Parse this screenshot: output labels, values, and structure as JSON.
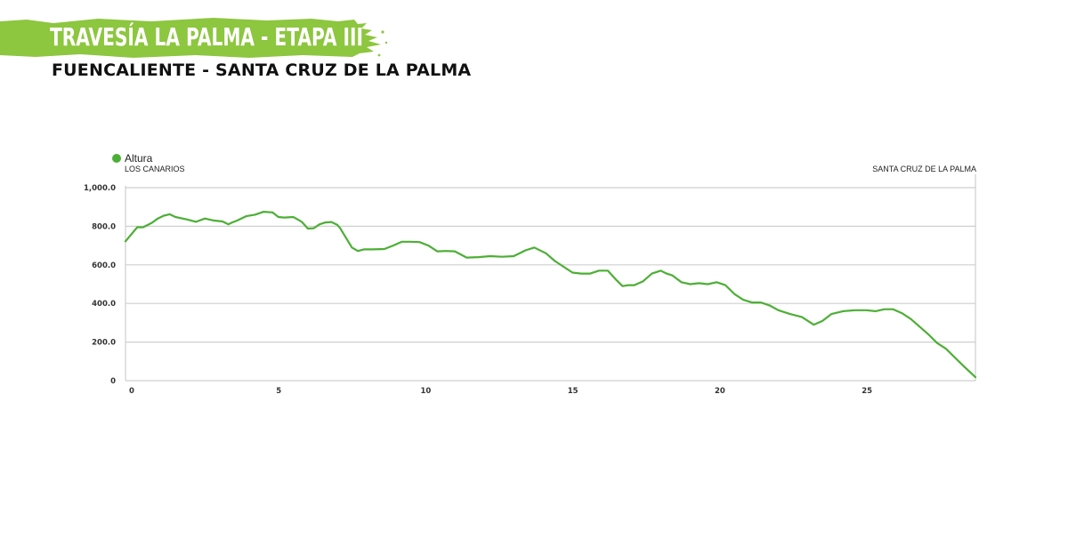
{
  "header": {
    "title": "TRAVESÍA LA PALMA - ETAPA III",
    "subtitle": "FUENCALIENTE - SANTA CRUZ DE LA PALMA"
  },
  "colors": {
    "accent": "#8dc63f",
    "line": "#4caf35",
    "grid": "#cfcfcf"
  },
  "chart_data": {
    "type": "line",
    "legend": "top-left",
    "grid": true,
    "xlim": [
      0,
      28.9
    ],
    "ylim": [
      0,
      1000
    ],
    "x_ticks": [
      "0",
      "5",
      "10",
      "15",
      "20",
      "25"
    ],
    "y_ticks": [
      "0",
      "200.0",
      "400.0",
      "600.0",
      "800.0",
      "1,000.0"
    ],
    "annotations": {
      "start": "LOS CANARIOS",
      "end": "SANTA CRUZ DE LA PALMA"
    },
    "series": [
      {
        "name": "Altura",
        "x": [
          0,
          0.4,
          0.6,
          0.9,
          1.1,
          1.3,
          1.5,
          1.7,
          2.1,
          2.4,
          2.7,
          3.0,
          3.3,
          3.5,
          3.6,
          3.8,
          4.1,
          4.4,
          4.7,
          5.0,
          5.2,
          5.4,
          5.7,
          5.8,
          6.0,
          6.2,
          6.4,
          6.6,
          6.8,
          7.0,
          7.2,
          7.3,
          7.5,
          7.7,
          7.9,
          8.1,
          8.4,
          8.8,
          9.1,
          9.4,
          9.7,
          10.0,
          10.3,
          10.6,
          10.9,
          11.2,
          11.6,
          12.0,
          12.4,
          12.8,
          13.2,
          13.6,
          13.9,
          14.3,
          14.6,
          14.9,
          15.2,
          15.5,
          15.8,
          16.1,
          16.4,
          16.7,
          16.9,
          17.1,
          17.3,
          17.6,
          17.9,
          18.2,
          18.4,
          18.6,
          18.9,
          19.2,
          19.5,
          19.8,
          20.1,
          20.4,
          20.7,
          21.0,
          21.3,
          21.6,
          21.9,
          22.2,
          22.6,
          23.0,
          23.4,
          23.7,
          24.0,
          24.4,
          24.8,
          25.2,
          25.5,
          25.8,
          26.1,
          26.4,
          26.7,
          27.0,
          27.3,
          27.6,
          27.9,
          28.2,
          28.5,
          28.9
        ],
        "values": [
          722,
          795,
          795,
          818,
          840,
          855,
          862,
          848,
          835,
          823,
          840,
          830,
          825,
          810,
          818,
          830,
          852,
          860,
          875,
          872,
          848,
          845,
          848,
          840,
          822,
          788,
          790,
          810,
          820,
          822,
          808,
          790,
          740,
          690,
          672,
          680,
          680,
          682,
          700,
          720,
          720,
          718,
          700,
          670,
          672,
          670,
          638,
          640,
          645,
          642,
          645,
          675,
          690,
          660,
          620,
          590,
          560,
          555,
          555,
          570,
          570,
          520,
          490,
          495,
          495,
          515,
          555,
          570,
          555,
          545,
          510,
          500,
          505,
          500,
          510,
          495,
          450,
          420,
          405,
          405,
          390,
          365,
          345,
          330,
          290,
          310,
          345,
          360,
          365,
          365,
          360,
          370,
          370,
          350,
          320,
          280,
          240,
          195,
          165,
          120,
          75,
          18
        ]
      }
    ]
  }
}
